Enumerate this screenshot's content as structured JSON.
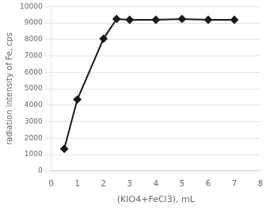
{
  "chart_data": {
    "type": "line",
    "x": [
      0.5,
      1.0,
      2.0,
      2.5,
      3.0,
      4.0,
      5.0,
      6.0,
      7.0
    ],
    "values": [
      1350,
      4350,
      8050,
      9250,
      9200,
      9200,
      9250,
      9200,
      9200
    ],
    "xlabel": "(KIO4+FeCl3), mL",
    "ylabel": "radiation intensity of Fe, cps",
    "xlim": [
      0,
      8
    ],
    "ylim": [
      0,
      10000
    ],
    "xticks": [
      0,
      1,
      2,
      3,
      4,
      5,
      6,
      7,
      8
    ],
    "yticks": [
      0,
      1000,
      2000,
      3000,
      4000,
      5000,
      6000,
      7000,
      8000,
      9000,
      10000
    ],
    "color": "#1a1a1a",
    "marker": "diamond",
    "grid": "y"
  }
}
